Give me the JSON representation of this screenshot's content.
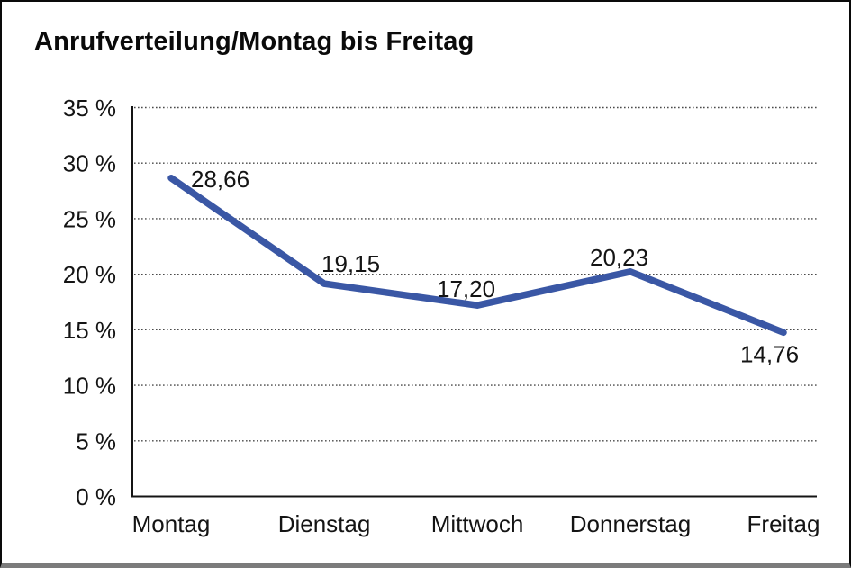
{
  "chart_data": {
    "type": "line",
    "title": "Anrufverteilung/Montag bis Freitag",
    "categories": [
      "Montag",
      "Dienstag",
      "Mittwoch",
      "Donnerstag",
      "Freitag"
    ],
    "values": [
      28.66,
      19.15,
      17.2,
      20.23,
      14.76
    ],
    "data_labels": [
      "28,66",
      "19,15",
      "17,20",
      "20,23",
      "14,76"
    ],
    "series_name": "Anrufverteilung",
    "unit": "%",
    "ylim": [
      0,
      35
    ],
    "y_ticks": [
      0,
      5,
      10,
      15,
      20,
      25,
      30,
      35
    ],
    "y_tick_labels": [
      "0 %",
      "5 %",
      "10 %",
      "15 %",
      "20 %",
      "25 %",
      "30 %",
      "35 %"
    ],
    "xlabel": "",
    "ylabel": "",
    "grid": "horizontal-dotted",
    "legend": "none",
    "line_color": "#3A57A5",
    "axis_color": "#141414",
    "grid_color": "#4a4a4a",
    "text_color": "#141414",
    "background_color": "#ffffff",
    "frame_bottom_bar_color": "#7b7b7b"
  }
}
